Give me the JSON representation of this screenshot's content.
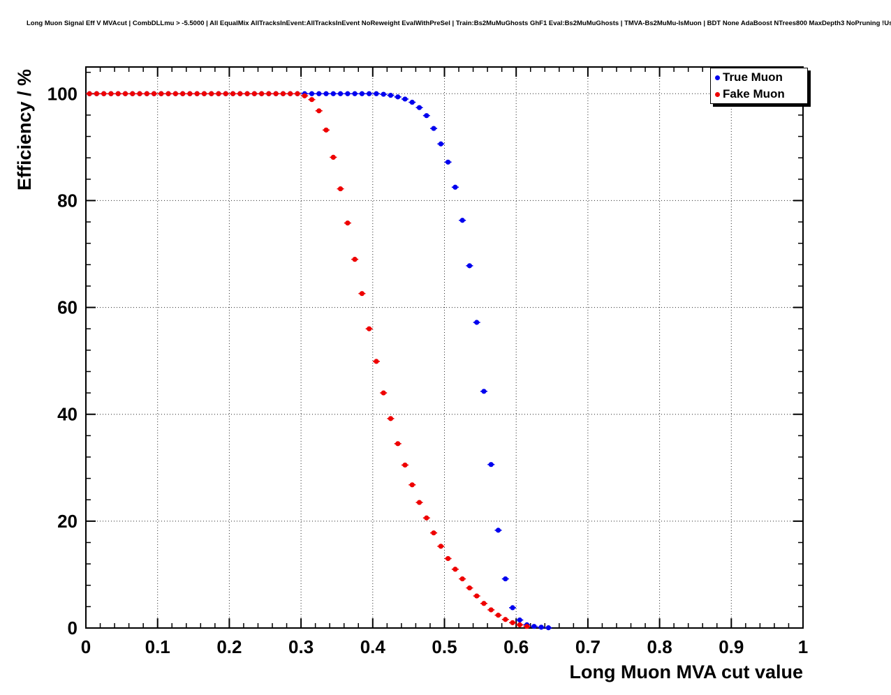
{
  "header": {
    "title": "Long Muon Signal Eff V MVAcut | CombDLLmu > -5.5000 | All EqualMix AllTracksInEvent:AllTracksInEvent NoReweight EvalWithPreSel | Train:Bs2MuMuGhosts GhF1 Eval:Bs2MuMuGhosts | TMVA-Bs2MuMu-IsMuon | BDT None AdaBoost NTrees800 MaxDepth3 NoPruning !UseReg"
  },
  "legend": {
    "items": [
      {
        "label": "True Muon",
        "color": "#0000ee"
      },
      {
        "label": "Fake Muon",
        "color": "#ee0000"
      }
    ]
  },
  "chart_data": {
    "type": "scatter",
    "title": "Long Muon Signal Eff V MVAcut | CombDLLmu > -5.5000 | All EqualMix AllTracksInEvent:AllTracksInEvent NoReweight EvalWithPreSel | Train:Bs2MuMuGhosts GhF1 Eval:Bs2MuMuGhosts | TMVA-Bs2MuMu-IsMuon | BDT None AdaBoost NTrees800 MaxDepth3 NoPruning !UseReg",
    "xlabel": "Long Muon MVA cut value",
    "ylabel": "Efficiency / %",
    "xlim": [
      0,
      1
    ],
    "ylim": [
      0,
      105
    ],
    "xticks": [
      0,
      0.1,
      0.2,
      0.3,
      0.4,
      0.5,
      0.6,
      0.7,
      0.8,
      0.9,
      1
    ],
    "yticks": [
      0,
      20,
      40,
      60,
      80,
      100
    ],
    "grid": true,
    "grid_style": "dotted",
    "legend_position": "top-right-inside",
    "marker": "filled-circle",
    "series": [
      {
        "name": "True Muon",
        "color": "#0000ee",
        "x": [
          0.005,
          0.015,
          0.025,
          0.035,
          0.045,
          0.055,
          0.065,
          0.075,
          0.085,
          0.095,
          0.105,
          0.115,
          0.125,
          0.135,
          0.145,
          0.155,
          0.165,
          0.175,
          0.185,
          0.195,
          0.205,
          0.215,
          0.225,
          0.235,
          0.245,
          0.255,
          0.265,
          0.275,
          0.285,
          0.295,
          0.305,
          0.315,
          0.325,
          0.335,
          0.345,
          0.355,
          0.365,
          0.375,
          0.385,
          0.395,
          0.405,
          0.415,
          0.425,
          0.435,
          0.445,
          0.455,
          0.465,
          0.475,
          0.485,
          0.495,
          0.505,
          0.515,
          0.525,
          0.535,
          0.545,
          0.555,
          0.565,
          0.575,
          0.585,
          0.595,
          0.605,
          0.615,
          0.625,
          0.635,
          0.645
        ],
        "y": [
          100,
          100,
          100,
          100,
          100,
          100,
          100,
          100,
          100,
          100,
          100,
          100,
          100,
          100,
          100,
          100,
          100,
          100,
          100,
          100,
          100,
          100,
          100,
          100,
          100,
          100,
          100,
          100,
          100,
          100,
          100,
          100,
          100,
          100,
          100,
          100,
          100,
          100,
          100,
          100,
          100,
          99.9,
          99.7,
          99.4,
          99.0,
          98.4,
          97.4,
          95.9,
          93.5,
          90.6,
          87.2,
          82.5,
          76.3,
          67.8,
          57.2,
          44.3,
          30.6,
          18.3,
          9.2,
          3.8,
          1.5,
          0.6,
          0.3,
          0.15,
          0.05
        ]
      },
      {
        "name": "Fake Muon",
        "color": "#ee0000",
        "x": [
          0.005,
          0.015,
          0.025,
          0.035,
          0.045,
          0.055,
          0.065,
          0.075,
          0.085,
          0.095,
          0.105,
          0.115,
          0.125,
          0.135,
          0.145,
          0.155,
          0.165,
          0.175,
          0.185,
          0.195,
          0.205,
          0.215,
          0.225,
          0.235,
          0.245,
          0.255,
          0.265,
          0.275,
          0.285,
          0.295,
          0.305,
          0.315,
          0.325,
          0.335,
          0.345,
          0.355,
          0.365,
          0.375,
          0.385,
          0.395,
          0.405,
          0.415,
          0.425,
          0.435,
          0.445,
          0.455,
          0.465,
          0.475,
          0.485,
          0.495,
          0.505,
          0.515,
          0.525,
          0.535,
          0.545,
          0.555,
          0.565,
          0.575,
          0.585,
          0.595,
          0.605,
          0.615
        ],
        "y": [
          100,
          100,
          100,
          100,
          100,
          100,
          100,
          100,
          100,
          100,
          100,
          100,
          100,
          100,
          100,
          100,
          100,
          100,
          100,
          100,
          100,
          100,
          100,
          100,
          100,
          100,
          100,
          100,
          100,
          100,
          99.6,
          98.9,
          96.8,
          93.2,
          88.1,
          82.2,
          75.8,
          69.0,
          62.6,
          56.0,
          49.9,
          44.0,
          39.2,
          34.5,
          30.5,
          26.8,
          23.5,
          20.6,
          17.8,
          15.3,
          13.0,
          11.0,
          9.2,
          7.5,
          6.0,
          4.6,
          3.4,
          2.4,
          1.6,
          1.0,
          0.6,
          0.3
        ]
      }
    ]
  }
}
